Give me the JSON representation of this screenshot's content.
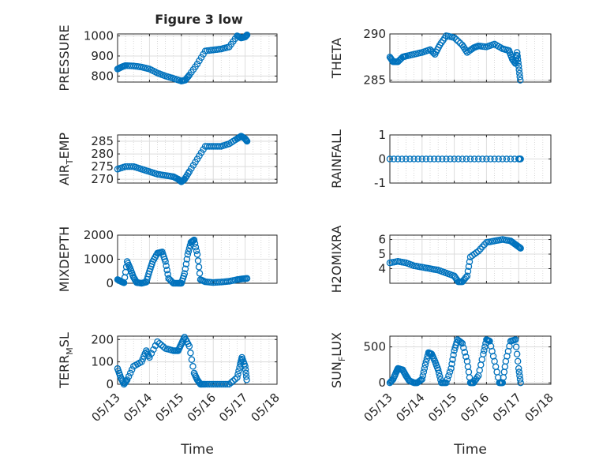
{
  "figure": {
    "title": "Figure 3 low"
  },
  "chart_data": [
    {
      "type": "scatter",
      "ylabel": "PRESSURE",
      "ylim": [
        770,
        1010
      ],
      "yticks": [
        800,
        900,
        1000
      ],
      "ytick_labels": [
        "800",
        "900",
        "1000"
      ],
      "xlim": [
        "05/13",
        "05/18"
      ],
      "xticks": [
        "05/13",
        "05/14",
        "05/15",
        "05/16",
        "05/17",
        "05/18"
      ],
      "x_tick_labels_shown": false,
      "grid": true,
      "marker_color": "#0072BD",
      "x_days": [
        0,
        0.125,
        0.25,
        0.5,
        0.75,
        1,
        1.25,
        1.5,
        1.75,
        2,
        2.125,
        2.25,
        2.5,
        2.75,
        3,
        3.25,
        3.5,
        3.75,
        3.875,
        4,
        4.06
      ],
      "y": [
        835,
        845,
        852,
        850,
        845,
        835,
        815,
        800,
        788,
        775,
        780,
        805,
        860,
        925,
        930,
        935,
        945,
        1000,
        990,
        995,
        1005
      ]
    },
    {
      "type": "scatter",
      "ylabel": "THETA",
      "ylim": [
        284.8,
        290
      ],
      "yticks": [
        285,
        290
      ],
      "ytick_labels": [
        "285",
        "290"
      ],
      "xlim": [
        "05/13",
        "05/18"
      ],
      "xticks": [
        "05/13",
        "05/14",
        "05/15",
        "05/16",
        "05/17",
        "05/18"
      ],
      "x_tick_labels_shown": false,
      "grid": true,
      "marker_color": "#0072BD",
      "x_days": [
        0,
        0.1,
        0.25,
        0.4,
        0.5,
        0.75,
        1,
        1.25,
        1.4,
        1.55,
        1.75,
        2,
        2.25,
        2.4,
        2.6,
        2.75,
        3,
        3.25,
        3.5,
        3.7,
        3.8,
        3.9,
        3.95,
        4.0,
        4.05
      ],
      "y": [
        287.5,
        287.0,
        287.0,
        287.5,
        287.6,
        287.8,
        288.0,
        288.3,
        287.8,
        288.8,
        289.8,
        289.6,
        288.8,
        288.0,
        288.5,
        288.7,
        288.6,
        288.9,
        288.4,
        288.2,
        287.3,
        286.8,
        288.0,
        286.5,
        285.0
      ]
    },
    {
      "type": "scatter",
      "ylabel": "AIR",
      "ylabel_subscript": "T",
      "ylabel_suffix": "EMP",
      "ylim": [
        268.5,
        287.5
      ],
      "yticks": [
        270,
        275,
        280,
        285
      ],
      "ytick_labels": [
        "270",
        "275",
        "280",
        "285"
      ],
      "xlim": [
        "05/13",
        "05/18"
      ],
      "xticks": [
        "05/13",
        "05/14",
        "05/15",
        "05/16",
        "05/17",
        "05/18"
      ],
      "x_tick_labels_shown": false,
      "grid": true,
      "marker_color": "#0072BD",
      "x_days": [
        0,
        0.25,
        0.5,
        0.75,
        1,
        1.25,
        1.5,
        1.75,
        1.9,
        2,
        2.1,
        2.25,
        2.5,
        2.75,
        3,
        3.25,
        3.5,
        3.75,
        3.875,
        4.0,
        4.06
      ],
      "y": [
        274,
        275,
        275,
        274,
        273,
        272,
        271.5,
        271,
        270,
        269,
        270,
        273,
        278,
        283,
        283,
        283,
        284,
        286,
        287,
        286,
        285
      ]
    },
    {
      "type": "scatter",
      "ylabel": "RAINFALL",
      "ylim": [
        -1,
        1
      ],
      "yticks": [
        -1,
        0,
        1
      ],
      "ytick_labels": [
        "-1",
        "0",
        "1"
      ],
      "xlim": [
        "05/13",
        "05/18"
      ],
      "xticks": [
        "05/13",
        "05/14",
        "05/15",
        "05/16",
        "05/17",
        "05/18"
      ],
      "x_tick_labels_shown": false,
      "grid": true,
      "marker_color": "#0072BD",
      "x_days": [
        0,
        0.5,
        1,
        1.5,
        2,
        2.5,
        3,
        3.5,
        4,
        4.06
      ],
      "y": [
        0,
        0,
        0,
        0,
        0,
        0,
        0,
        0,
        0,
        0
      ]
    },
    {
      "type": "scatter",
      "ylabel": "MIXDEPTH",
      "ylim": [
        0,
        2000
      ],
      "yticks": [
        0,
        1000,
        2000
      ],
      "ytick_labels": [
        "0",
        "1000",
        "2000"
      ],
      "xlim": [
        "05/13",
        "05/18"
      ],
      "xticks": [
        "05/13",
        "05/14",
        "05/15",
        "05/16",
        "05/17",
        "05/18"
      ],
      "x_tick_labels_shown": false,
      "grid": true,
      "marker_color": "#0072BD",
      "x_days": [
        0,
        0.1,
        0.2,
        0.3,
        0.4,
        0.5,
        0.6,
        0.75,
        0.9,
        1.0,
        1.1,
        1.25,
        1.4,
        1.5,
        1.6,
        1.75,
        1.9,
        2.0,
        2.1,
        2.2,
        2.3,
        2.4,
        2.5,
        2.6,
        2.75,
        3.0,
        3.25,
        3.5,
        3.75,
        3.9,
        4.06
      ],
      "y": [
        150,
        80,
        20,
        900,
        600,
        250,
        30,
        0,
        50,
        500,
        900,
        1250,
        1300,
        900,
        200,
        0,
        0,
        0,
        400,
        1200,
        1700,
        1800,
        1200,
        150,
        60,
        30,
        50,
        80,
        150,
        180,
        200
      ]
    },
    {
      "type": "scatter",
      "ylabel": "H2OMIXRA",
      "ylim": [
        3.0,
        6.3
      ],
      "yticks": [
        4,
        5,
        6
      ],
      "ytick_labels": [
        "4",
        "5",
        "6"
      ],
      "xlim": [
        "05/13",
        "05/18"
      ],
      "xticks": [
        "05/13",
        "05/14",
        "05/15",
        "05/16",
        "05/17",
        "05/18"
      ],
      "x_tick_labels_shown": false,
      "grid": true,
      "marker_color": "#0072BD",
      "x_days": [
        0,
        0.25,
        0.5,
        0.75,
        1,
        1.25,
        1.5,
        1.75,
        2,
        2.125,
        2.25,
        2.4,
        2.5,
        2.75,
        3,
        3.25,
        3.5,
        3.75,
        3.875,
        4.0,
        4.06
      ],
      "y": [
        4.4,
        4.5,
        4.4,
        4.2,
        4.1,
        4.0,
        3.9,
        3.7,
        3.5,
        3.1,
        3.1,
        3.5,
        4.8,
        5.2,
        5.8,
        5.9,
        6.0,
        5.9,
        5.7,
        5.5,
        5.4
      ]
    },
    {
      "type": "scatter",
      "ylabel": "TERR",
      "ylabel_subscript": "M",
      "ylabel_suffix": "SL",
      "ylim": [
        0,
        215
      ],
      "yticks": [
        0,
        100,
        200
      ],
      "ytick_labels": [
        "0",
        "100",
        "200"
      ],
      "xlim": [
        "05/13",
        "05/18"
      ],
      "xticks": [
        "05/13",
        "05/14",
        "05/15",
        "05/16",
        "05/17",
        "05/18"
      ],
      "x_tick_labels": [
        "05/13",
        "05/14",
        "05/15",
        "05/16",
        "05/17",
        "05/18"
      ],
      "x_tick_labels_shown": true,
      "xlabel": "Time",
      "grid": true,
      "marker_color": "#0072BD",
      "x_days": [
        0,
        0.1,
        0.2,
        0.3,
        0.5,
        0.75,
        0.9,
        1.0,
        1.25,
        1.5,
        1.75,
        1.9,
        2.0,
        2.1,
        2.25,
        2.4,
        2.5,
        2.6,
        2.75,
        3.0,
        3.25,
        3.5,
        3.75,
        3.85,
        3.9,
        4.0,
        4.05
      ],
      "y": [
        70,
        30,
        0,
        20,
        80,
        100,
        150,
        120,
        190,
        160,
        150,
        150,
        180,
        210,
        170,
        50,
        20,
        0,
        0,
        0,
        0,
        0,
        30,
        90,
        120,
        80,
        20
      ]
    },
    {
      "type": "scatter",
      "ylabel": "SUN",
      "ylabel_subscript": "F",
      "ylabel_suffix": "LUX",
      "ylim": [
        -20,
        650
      ],
      "yticks": [
        0,
        500
      ],
      "ytick_labels": [
        "0",
        "500"
      ],
      "xlim": [
        "05/13",
        "05/18"
      ],
      "xticks": [
        "05/13",
        "05/14",
        "05/15",
        "05/16",
        "05/17",
        "05/18"
      ],
      "x_tick_labels": [
        "05/13",
        "05/14",
        "05/15",
        "05/16",
        "05/17",
        "05/18"
      ],
      "x_tick_labels_shown": true,
      "xlabel": "Time",
      "grid": true,
      "marker_color": "#0072BD",
      "x_days": [
        0,
        0.1,
        0.2,
        0.25,
        0.4,
        0.5,
        0.6,
        0.75,
        0.85,
        1.0,
        1.1,
        1.2,
        1.3,
        1.4,
        1.5,
        1.6,
        1.75,
        1.9,
        2.0,
        2.1,
        2.25,
        2.4,
        2.5,
        2.6,
        2.75,
        2.9,
        3.0,
        3.1,
        3.25,
        3.4,
        3.5,
        3.6,
        3.75,
        3.9,
        4.0,
        4.06
      ],
      "y": [
        0,
        50,
        150,
        200,
        180,
        100,
        30,
        0,
        0,
        50,
        250,
        420,
        400,
        300,
        180,
        0,
        0,
        200,
        450,
        600,
        550,
        300,
        0,
        0,
        100,
        400,
        600,
        580,
        300,
        0,
        0,
        300,
        580,
        600,
        200,
        0
      ]
    }
  ]
}
